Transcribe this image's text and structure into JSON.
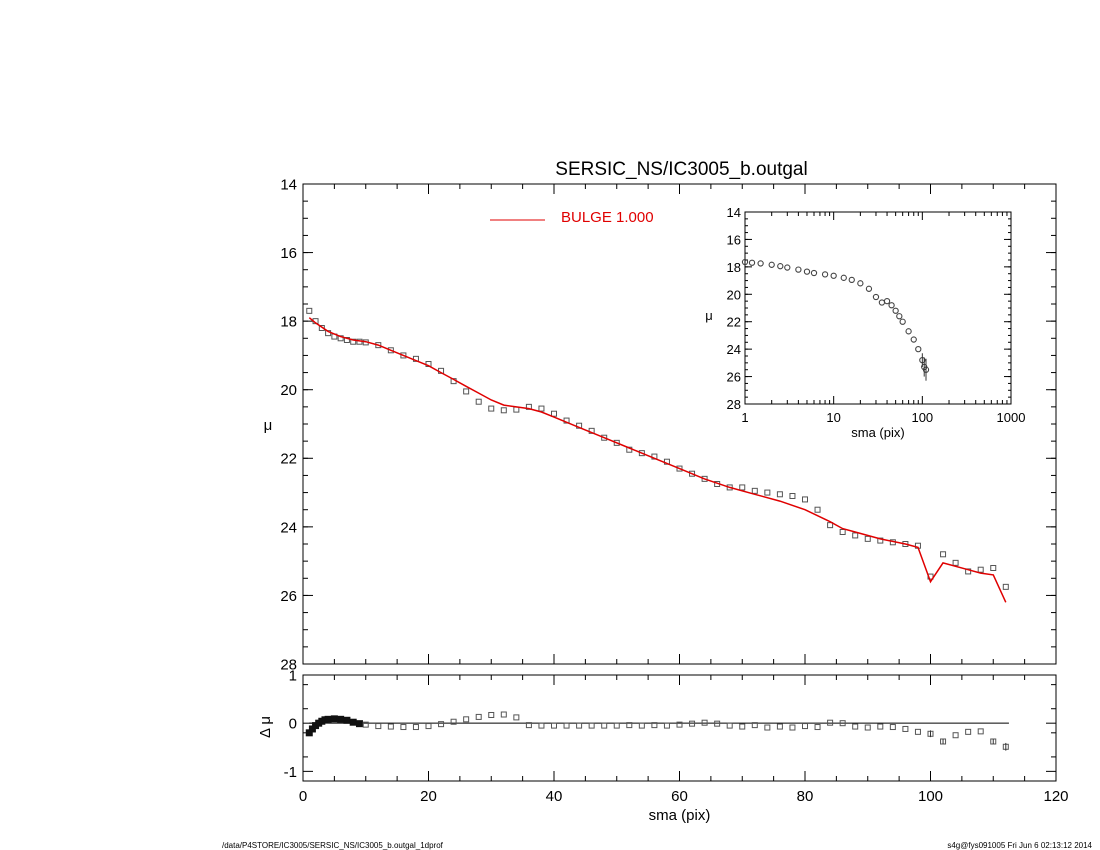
{
  "footer": {
    "left": "/data/P4STORE/IC3005/SERSIC_NS/IC3005_b.outgal_1dprof",
    "right": "s4g@fys091005  Fri Jun  6 02:13:12 2014"
  },
  "colors": {
    "model": "#e00000",
    "data": "#555555",
    "axes": "#000000"
  },
  "chart_data": [
    {
      "id": "main",
      "type": "scatter",
      "title": "SERSIC_NS/IC3005_b.outgal",
      "xlabel": "",
      "ylabel": "μ",
      "xlim": [
        0,
        120
      ],
      "ylim": [
        28,
        14
      ],
      "y_inverted": true,
      "xticks": [
        0,
        20,
        40,
        60,
        80,
        100,
        120
      ],
      "yticks": [
        14,
        16,
        18,
        20,
        22,
        24,
        26,
        28
      ],
      "legend": {
        "position": "top-center",
        "label": "BULGE  1.000"
      },
      "series": [
        {
          "name": "data",
          "style": "squares",
          "x": [
            1,
            2,
            3,
            4,
            5,
            6,
            7,
            8,
            9,
            10,
            12,
            14,
            16,
            18,
            20,
            22,
            24,
            26,
            28,
            30,
            32,
            34,
            36,
            38,
            40,
            42,
            44,
            46,
            48,
            50,
            52,
            54,
            56,
            58,
            60,
            62,
            64,
            66,
            68,
            70,
            72,
            74,
            76,
            78,
            80,
            82,
            84,
            86,
            88,
            90,
            92,
            94,
            96,
            98,
            100,
            102,
            104,
            106,
            108,
            110,
            112
          ],
          "y": [
            17.7,
            18.0,
            18.2,
            18.35,
            18.45,
            18.5,
            18.55,
            18.6,
            18.6,
            18.62,
            18.7,
            18.85,
            19.0,
            19.1,
            19.25,
            19.45,
            19.75,
            20.05,
            20.35,
            20.55,
            20.6,
            20.58,
            20.5,
            20.55,
            20.7,
            20.9,
            21.05,
            21.2,
            21.4,
            21.55,
            21.75,
            21.85,
            21.95,
            22.1,
            22.3,
            22.45,
            22.6,
            22.75,
            22.85,
            22.85,
            22.95,
            23.0,
            23.05,
            23.1,
            23.2,
            23.5,
            23.95,
            24.15,
            24.25,
            24.35,
            24.4,
            24.45,
            24.5,
            24.55,
            25.45,
            24.8,
            25.05,
            25.3,
            25.25,
            25.2,
            25.75
          ]
        },
        {
          "name": "BULGE  1.000",
          "style": "line",
          "x": [
            1,
            2,
            4,
            6,
            8,
            10,
            12,
            14,
            16,
            18,
            20,
            22,
            24,
            26,
            28,
            30,
            32,
            34,
            36,
            38,
            40,
            44,
            48,
            52,
            56,
            60,
            64,
            68,
            72,
            76,
            80,
            84,
            86,
            88,
            92,
            96,
            98,
            100,
            102,
            106,
            108,
            110,
            112
          ],
          "y": [
            17.9,
            18.05,
            18.3,
            18.45,
            18.55,
            18.6,
            18.7,
            18.85,
            19.0,
            19.15,
            19.3,
            19.5,
            19.7,
            19.9,
            20.1,
            20.3,
            20.45,
            20.5,
            20.55,
            20.65,
            20.8,
            21.1,
            21.4,
            21.7,
            22.0,
            22.3,
            22.6,
            22.85,
            23.05,
            23.25,
            23.5,
            23.85,
            24.05,
            24.15,
            24.35,
            24.5,
            24.6,
            25.6,
            25.05,
            25.25,
            25.35,
            25.4,
            26.2
          ]
        }
      ]
    },
    {
      "id": "inset",
      "type": "scatter",
      "title": "",
      "xlabel": "sma (pix)",
      "ylabel": "μ",
      "xscale": "log",
      "xlim": [
        1,
        1000
      ],
      "ylim": [
        28,
        14
      ],
      "y_inverted": true,
      "xticks": [
        1,
        10,
        100,
        1000
      ],
      "xticklabels": [
        "1",
        "10",
        "100",
        "1000"
      ],
      "yticks": [
        14,
        16,
        18,
        20,
        22,
        24,
        26,
        28
      ],
      "series": [
        {
          "name": "data",
          "style": "circles",
          "x": [
            1,
            1.2,
            1.5,
            2,
            2.5,
            3,
            4,
            5,
            6,
            8,
            10,
            13,
            16,
            20,
            25,
            30,
            35,
            40,
            45,
            50,
            55,
            60,
            70,
            80,
            90,
            100,
            105,
            110
          ],
          "y": [
            17.65,
            17.7,
            17.75,
            17.85,
            17.95,
            18.05,
            18.2,
            18.35,
            18.45,
            18.55,
            18.65,
            18.8,
            18.95,
            19.2,
            19.6,
            20.2,
            20.6,
            20.5,
            20.8,
            21.2,
            21.6,
            22.0,
            22.7,
            23.3,
            24.0,
            24.8,
            25.3,
            25.5
          ]
        }
      ]
    },
    {
      "id": "residual",
      "type": "scatter",
      "title": "",
      "xlabel": "sma (pix)",
      "ylabel": "Δ μ",
      "xlim": [
        0,
        120
      ],
      "ylim": [
        -1.2,
        1.0
      ],
      "xticks": [
        0,
        20,
        40,
        60,
        80,
        100,
        120
      ],
      "yticks": [
        -1,
        0,
        1
      ],
      "series": [
        {
          "name": "residual",
          "style": "squares",
          "x": [
            1,
            1.5,
            2,
            2.5,
            3,
            3.5,
            4,
            5,
            6,
            7,
            8,
            9,
            10,
            12,
            14,
            16,
            18,
            20,
            22,
            24,
            26,
            28,
            30,
            32,
            34,
            36,
            38,
            40,
            42,
            44,
            46,
            48,
            50,
            52,
            54,
            56,
            58,
            60,
            62,
            64,
            66,
            68,
            70,
            72,
            74,
            76,
            78,
            80,
            82,
            84,
            86,
            88,
            90,
            92,
            94,
            96,
            98,
            100,
            102,
            104,
            106,
            108,
            110,
            112
          ],
          "y": [
            -0.2,
            -0.12,
            -0.05,
            0.0,
            0.04,
            0.07,
            0.08,
            0.09,
            0.08,
            0.06,
            0.02,
            -0.01,
            -0.03,
            -0.06,
            -0.07,
            -0.08,
            -0.08,
            -0.06,
            -0.02,
            0.03,
            0.08,
            0.13,
            0.17,
            0.18,
            0.12,
            -0.04,
            -0.05,
            -0.05,
            -0.05,
            -0.05,
            -0.05,
            -0.05,
            -0.05,
            -0.04,
            -0.05,
            -0.04,
            -0.05,
            -0.03,
            -0.01,
            0.01,
            -0.01,
            -0.05,
            -0.07,
            -0.04,
            -0.09,
            -0.07,
            -0.09,
            -0.06,
            -0.08,
            0.01,
            0.0,
            -0.07,
            -0.09,
            -0.07,
            -0.08,
            -0.12,
            -0.18,
            -0.22,
            -0.38,
            -0.25,
            -0.18,
            -0.17,
            -0.38,
            -0.49
          ]
        }
      ]
    }
  ]
}
